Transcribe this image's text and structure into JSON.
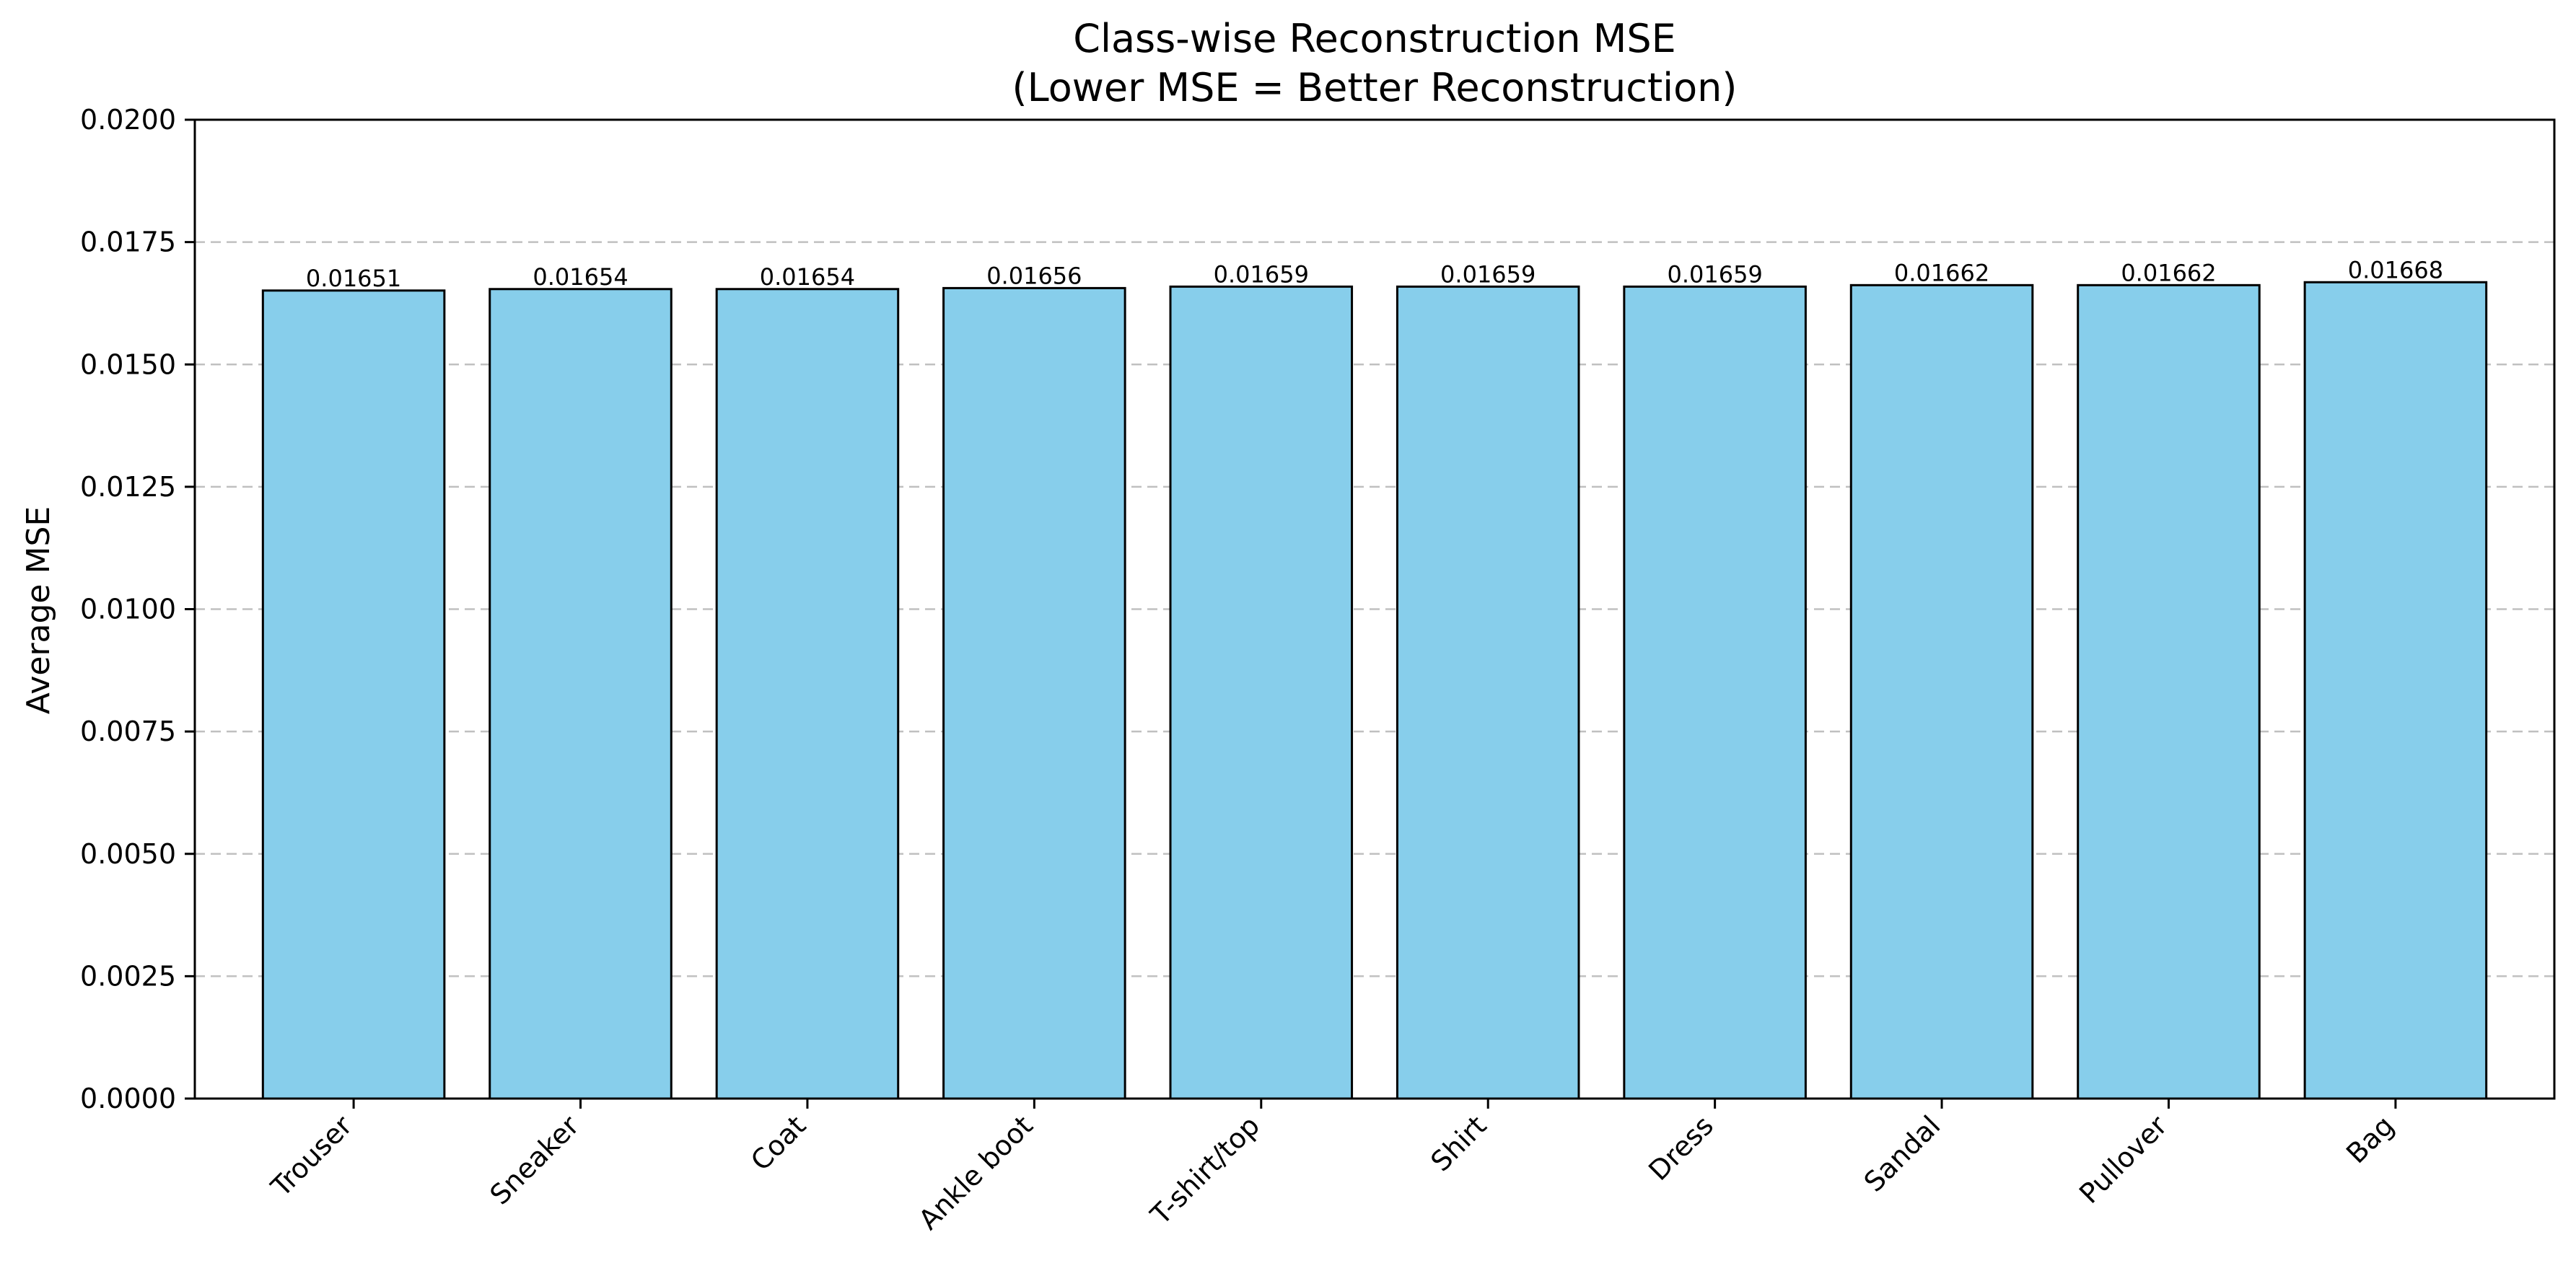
{
  "chart_data": {
    "type": "bar",
    "title": "Class-wise Reconstruction MSE",
    "subtitle": "(Lower MSE = Better Reconstruction)",
    "xlabel": "",
    "ylabel": "Average MSE",
    "ylim": [
      0,
      0.02
    ],
    "yticks": [
      "0.0000",
      "0.0025",
      "0.0050",
      "0.0075",
      "0.0100",
      "0.0125",
      "0.0150",
      "0.0175",
      "0.0200"
    ],
    "ytick_values": [
      0,
      0.0025,
      0.005,
      0.0075,
      0.01,
      0.0125,
      0.015,
      0.0175,
      0.02
    ],
    "categories": [
      "Trouser",
      "Sneaker",
      "Coat",
      "Ankle boot",
      "T-shirt/top",
      "Shirt",
      "Dress",
      "Sandal",
      "Pullover",
      "Bag"
    ],
    "values": [
      0.01651,
      0.01654,
      0.01654,
      0.01656,
      0.01659,
      0.01659,
      0.01659,
      0.01662,
      0.01662,
      0.01668
    ],
    "value_labels": [
      "0.01651",
      "0.01654",
      "0.01654",
      "0.01656",
      "0.01659",
      "0.01659",
      "0.01659",
      "0.01662",
      "0.01662",
      "0.01668"
    ],
    "grid": "y-dashed",
    "bar_color": "#87CEEB",
    "edge_color": "#000000",
    "grid_color": "#c0c0c0"
  }
}
